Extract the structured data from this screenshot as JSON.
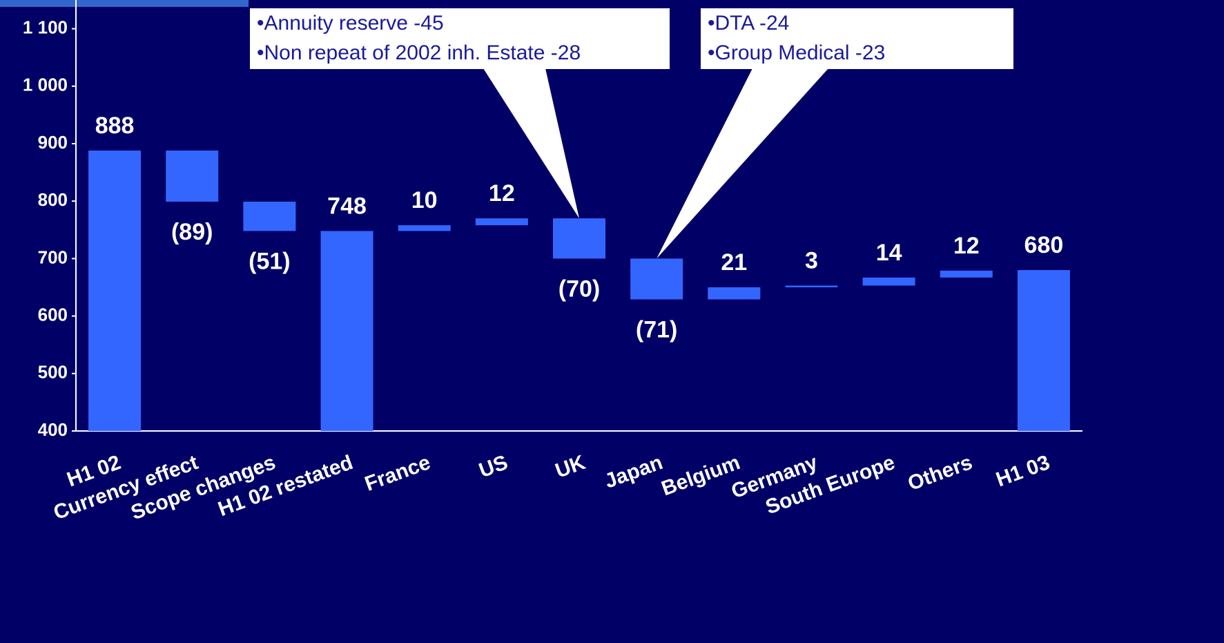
{
  "chart_data": {
    "type": "waterfall",
    "categories": [
      "H1 02",
      "Currency effect",
      "Scope changes",
      "H1 02 restated",
      "France",
      "US",
      "UK",
      "Japan",
      "Belgium",
      "Germany",
      "South Europe",
      "Others",
      "H1 03"
    ],
    "values": [
      888,
      -89,
      -51,
      748,
      10,
      12,
      -70,
      -71,
      21,
      3,
      14,
      12,
      680
    ],
    "value_labels": [
      "888",
      "(89)",
      "(51)",
      "748",
      "10",
      "12",
      "(70)",
      "(71)",
      "21",
      "3",
      "14",
      "12",
      "680"
    ],
    "measure": [
      "absolute",
      "relative",
      "relative",
      "absolute",
      "relative",
      "relative",
      "relative",
      "relative",
      "relative",
      "relative",
      "relative",
      "relative",
      "absolute"
    ],
    "color": "#3366ff",
    "ylim": [
      400,
      1150
    ],
    "yticks": [
      400,
      500,
      600,
      700,
      800,
      900,
      {
        "value": 1000,
        "label": "1 000"
      },
      {
        "value": 1100,
        "label": "1 100"
      }
    ],
    "grid": false,
    "annotations": [
      {
        "lines": [
          "•Annuity reserve -45",
          "•Non repeat of 2002 inh. Estate -28"
        ],
        "category": 6
      },
      {
        "lines": [
          "•DTA -24",
          "•Group Medical -23"
        ],
        "category": 7
      }
    ]
  }
}
